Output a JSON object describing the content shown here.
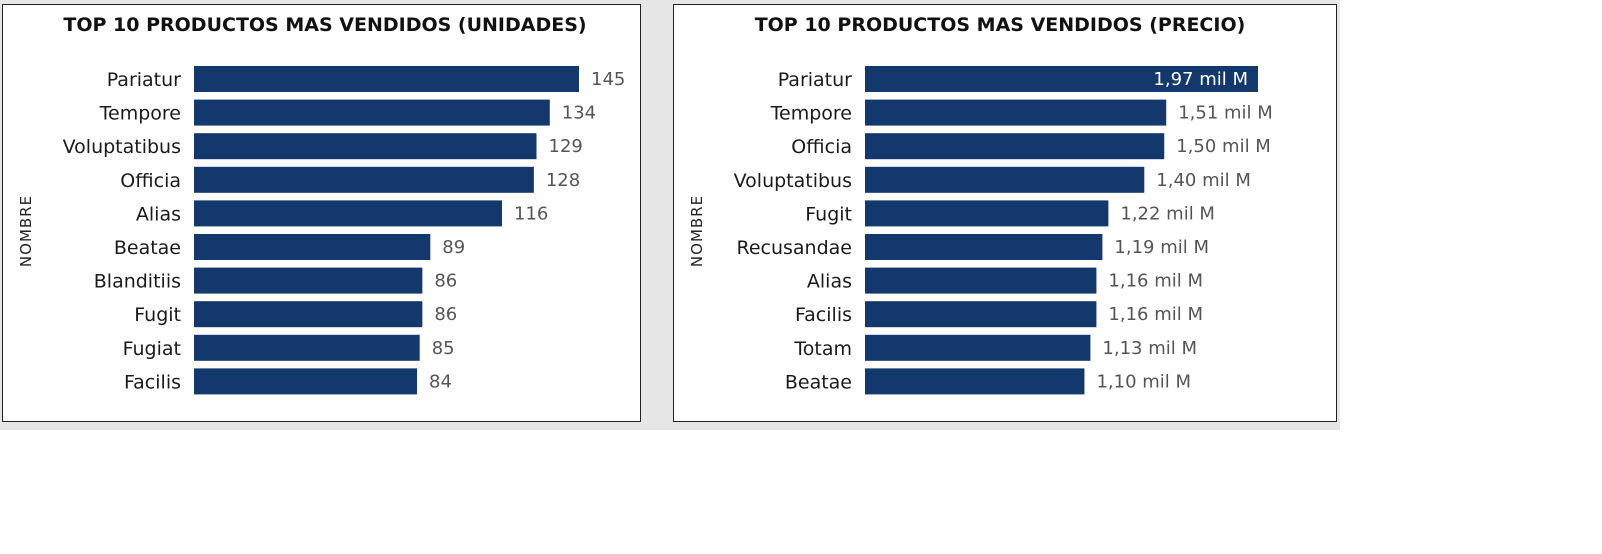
{
  "colors": {
    "bar": "#12386c",
    "value_label": "#555555",
    "inside_label": "#ffffff"
  },
  "chart_data": [
    {
      "type": "bar",
      "orientation": "horizontal",
      "title": "TOP 10 PRODUCTOS MAS VENDIDOS (UNIDADES)",
      "ylabel": "NOMBRE",
      "xlabel": "",
      "categories": [
        "Pariatur",
        "Tempore",
        "Voluptatibus",
        "Officia",
        "Alias",
        "Beatae",
        "Blanditiis",
        "Fugit",
        "Fugiat",
        "Facilis"
      ],
      "values": [
        145,
        134,
        129,
        128,
        116,
        89,
        86,
        86,
        85,
        84
      ],
      "value_labels": [
        "145",
        "134",
        "129",
        "128",
        "116",
        "89",
        "86",
        "86",
        "85",
        "84"
      ],
      "xlim": [
        0,
        145
      ]
    },
    {
      "type": "bar",
      "orientation": "horizontal",
      "title": "TOP 10 PRODUCTOS MAS VENDIDOS (PRECIO)",
      "ylabel": "NOMBRE",
      "xlabel": "",
      "categories": [
        "Pariatur",
        "Tempore",
        "Officia",
        "Voluptatibus",
        "Fugit",
        "Recusandae",
        "Alias",
        "Facilis",
        "Totam",
        "Beatae"
      ],
      "values": [
        1.97,
        1.51,
        1.5,
        1.4,
        1.22,
        1.19,
        1.16,
        1.16,
        1.13,
        1.1
      ],
      "value_labels": [
        "1,97 mil M",
        "1,51 mil M",
        "1,50 mil M",
        "1,40 mil M",
        "1,22 mil M",
        "1,19 mil M",
        "1,16 mil M",
        "1,16 mil M",
        "1,13 mil M",
        "1,10 mil M"
      ],
      "xlim": [
        0,
        1.97
      ]
    }
  ]
}
